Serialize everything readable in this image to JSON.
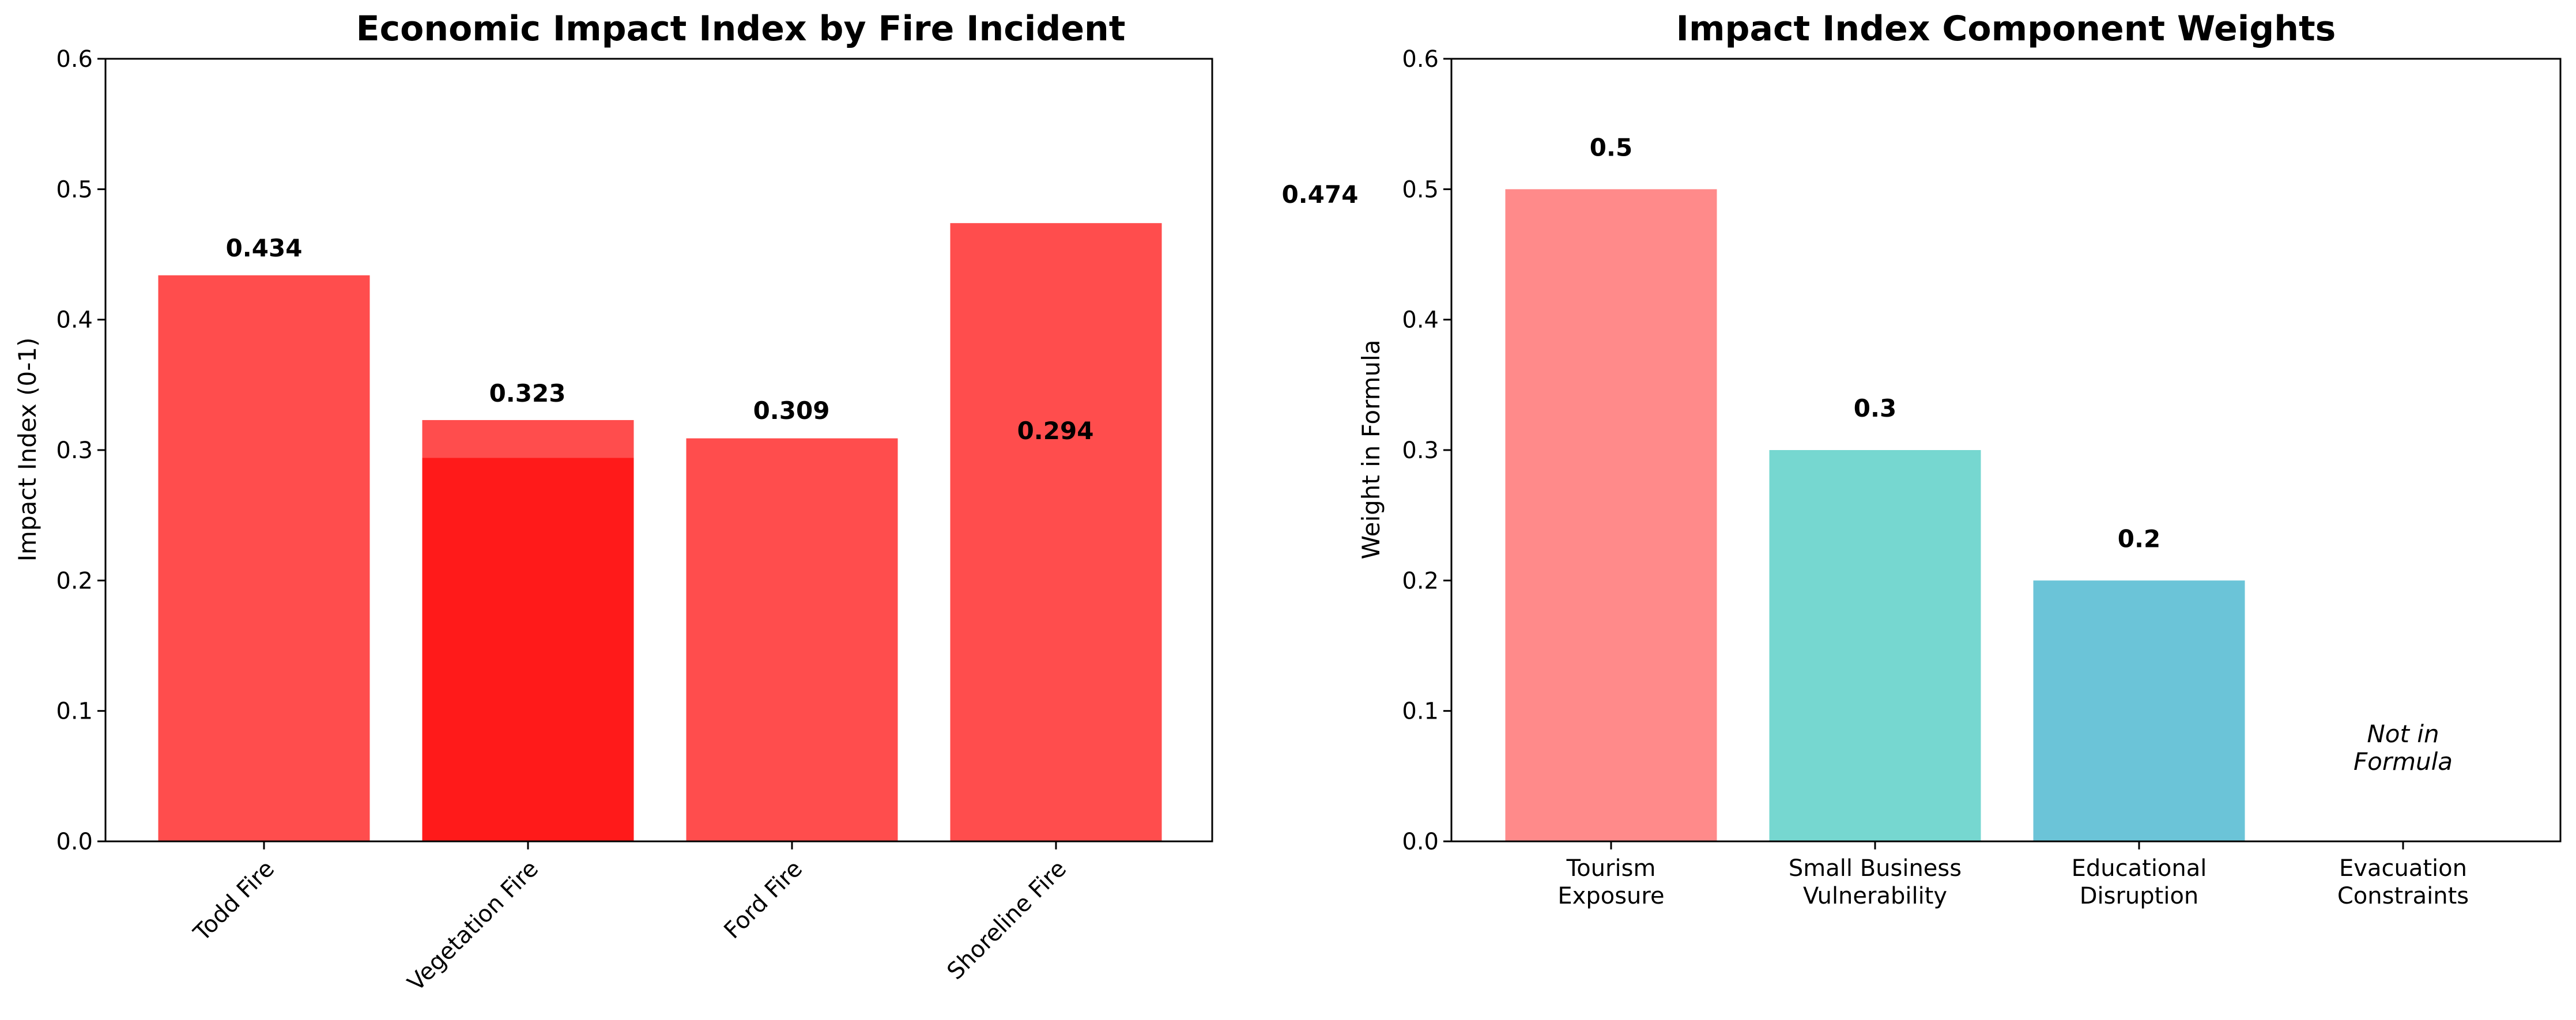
{
  "chart_data": [
    {
      "type": "bar",
      "title": "Economic Impact Index by Fire Incident",
      "xlabel": "",
      "ylabel": "Impact Index (0-1)",
      "ylim": [
        0,
        0.6
      ],
      "yticks": [
        "0.0",
        "0.1",
        "0.2",
        "0.3",
        "0.4",
        "0.5",
        "0.6"
      ],
      "categories": [
        "Todd Fire",
        "Vegetation Fire",
        "Ford Fire",
        "Shoreline Fire"
      ],
      "values": [
        0.434,
        0.323,
        0.309,
        0.474
      ],
      "value_labels": [
        "0.434",
        "0.323",
        "0.309",
        "0.474"
      ],
      "overlay": {
        "category": "Vegetation Fire",
        "value": 0.294,
        "value_label": "0.294",
        "color": "#ff1a1a"
      },
      "bar_color": "#ff4d4d",
      "grid": false
    },
    {
      "type": "bar",
      "title": "Impact Index Component Weights",
      "xlabel": "",
      "ylabel": "Weight in Formula",
      "ylim": [
        0,
        0.6
      ],
      "yticks": [
        "0.0",
        "0.1",
        "0.2",
        "0.3",
        "0.4",
        "0.5",
        "0.6"
      ],
      "categories": [
        [
          "Tourism",
          "Exposure"
        ],
        [
          "Small Business",
          "Vulnerability"
        ],
        [
          "Educational",
          "Disruption"
        ],
        [
          "Evacuation",
          "Constraints"
        ]
      ],
      "values": [
        0.5,
        0.3,
        0.2,
        0
      ],
      "value_labels": [
        "0.5",
        "0.3",
        "0.2",
        ""
      ],
      "colors": [
        "#ff8a8a",
        "#76d7d0",
        "#6bc4d8",
        "#ffffff"
      ],
      "note": [
        "Not in",
        "Formula"
      ],
      "grid": false
    }
  ]
}
